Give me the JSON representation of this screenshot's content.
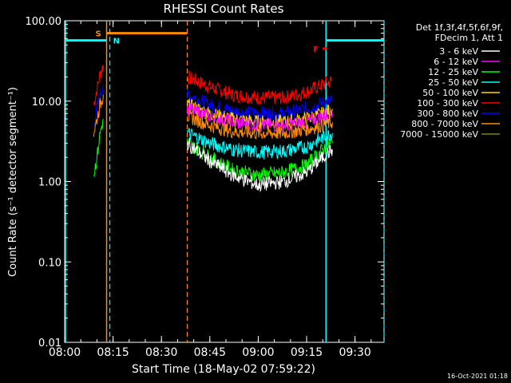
{
  "chart_data": {
    "type": "line",
    "title": "RHESSI Count Rates",
    "xlabel": "Start Time (18-May-02 07:59:22)",
    "ylabel": "Count Rate (s⁻¹ detector segment⁻¹)",
    "y_scale": "log",
    "ylim": [
      0.01,
      100
    ],
    "xlim": [
      "08:00",
      "09:39"
    ],
    "x_ticks": [
      "08:00",
      "08:15",
      "08:30",
      "08:45",
      "09:00",
      "09:15",
      "09:30"
    ],
    "y_ticks": [
      "100.00",
      "10.00",
      "1.00",
      "0.10",
      "0.01"
    ],
    "grid": false,
    "legend_placement": "right",
    "legend_header": [
      "Det 1f,3f,4f,5f,6f,9f,",
      "FDecim 1, Att 1"
    ],
    "timestamp": "16-Oct-2021 01:18",
    "series": [
      {
        "name": "3 - 6 keV",
        "color": "#ffffff"
      },
      {
        "name": "6 - 12 keV",
        "color": "#ff00ff"
      },
      {
        "name": "12 - 25 keV",
        "color": "#00ff00"
      },
      {
        "name": "25 - 50 keV",
        "color": "#00ffff"
      },
      {
        "name": "50 - 100 keV",
        "color": "#ffd700"
      },
      {
        "name": "100 - 300 keV",
        "color": "#ff0000"
      },
      {
        "name": "300 - 800 keV",
        "color": "#0000ff"
      },
      {
        "name": "800 - 7000 keV",
        "color": "#ff8c00"
      },
      {
        "name": "7000 - 15000 keV",
        "color": "#808000"
      }
    ],
    "traces": [
      {
        "series": "100 - 300 keV",
        "segments": [
          {
            "x": [
              "08:09",
              "08:10",
              "08:11",
              "08:12"
            ],
            "y": [
              9,
              14,
              22,
              28
            ]
          },
          {
            "x": [
              "08:38",
              "08:45",
              "08:52",
              "09:00",
              "09:08",
              "09:15",
              "09:20",
              "09:23"
            ],
            "y": [
              20,
              15,
              12,
              11,
              11,
              13,
              16,
              18
            ]
          }
        ]
      },
      {
        "series": "300 - 800 keV",
        "segments": [
          {
            "x": [
              "08:09",
              "08:10",
              "08:11",
              "08:12"
            ],
            "y": [
              5,
              8,
              12,
              16
            ]
          },
          {
            "x": [
              "08:38",
              "08:45",
              "08:52",
              "09:00",
              "09:08",
              "09:15",
              "09:20",
              "09:23"
            ],
            "y": [
              12,
              9,
              7.5,
              7,
              7,
              8,
              9.5,
              10
            ]
          }
        ]
      },
      {
        "series": "50 - 100 keV",
        "segments": [
          {
            "x": [
              "08:38",
              "08:45",
              "08:52",
              "09:00",
              "09:08",
              "09:15",
              "09:20",
              "09:23"
            ],
            "y": [
              9,
              7,
              6,
              5.5,
              5.5,
              6,
              7,
              8
            ]
          }
        ]
      },
      {
        "series": "6 - 12 keV",
        "segments": [
          {
            "x": [
              "08:38",
              "08:45",
              "08:52",
              "09:00",
              "09:08",
              "09:15",
              "09:20",
              "09:23"
            ],
            "y": [
              8,
              6.5,
              5.5,
              5,
              5,
              5.5,
              6.5,
              7
            ]
          }
        ]
      },
      {
        "series": "800 - 7000 keV",
        "segments": [
          {
            "x": [
              "08:09",
              "08:10",
              "08:11",
              "08:12"
            ],
            "y": [
              4,
              6,
              9,
              12
            ]
          },
          {
            "x": [
              "08:38",
              "08:45",
              "08:52",
              "09:00",
              "09:08",
              "09:15",
              "09:20",
              "09:23"
            ],
            "y": [
              6.5,
              5,
              4.2,
              4,
              4,
              4.5,
              5,
              5.5
            ]
          }
        ]
      },
      {
        "series": "25 - 50 keV",
        "segments": [
          {
            "x": [
              "08:38",
              "08:45",
              "08:52",
              "09:00",
              "09:08",
              "09:15",
              "09:20",
              "09:23"
            ],
            "y": [
              4,
              3,
              2.5,
              2.3,
              2.4,
              2.7,
              3.5,
              4
            ]
          }
        ]
      },
      {
        "series": "12 - 25 keV",
        "segments": [
          {
            "x": [
              "08:09",
              "08:10",
              "08:11",
              "08:12"
            ],
            "y": [
              1.2,
              2,
              4,
              6
            ]
          },
          {
            "x": [
              "08:38",
              "08:45",
              "08:52",
              "09:00",
              "09:08",
              "09:15",
              "09:20",
              "09:23"
            ],
            "y": [
              3,
              2,
              1.4,
              1.2,
              1.3,
              1.6,
              2.5,
              3
            ]
          }
        ]
      },
      {
        "series": "3 - 6 keV",
        "segments": [
          {
            "x": [
              "08:38",
              "08:45",
              "08:52",
              "09:00",
              "09:08",
              "09:15",
              "09:20",
              "09:23"
            ],
            "y": [
              3,
              1.8,
              1.2,
              0.9,
              1,
              1.3,
              2,
              2.5
            ]
          }
        ]
      }
    ],
    "markers": {
      "S": {
        "label": "S",
        "start": "08:13",
        "end": "08:38",
        "level": 70,
        "color": "#ff8c00"
      },
      "N": {
        "label": "N",
        "start": "08:13",
        "end": "08:14",
        "color": "#00ffff"
      },
      "F": {
        "label": "F",
        "start": "09:20",
        "end": "09:21",
        "color": "#ff0000"
      },
      "night_left": {
        "start": "08:00",
        "end": "08:13",
        "level": 57,
        "color": "#00ffff"
      },
      "night_right": {
        "start": "09:21",
        "end": "09:39",
        "level": 57,
        "color": "#00ffff"
      }
    }
  }
}
